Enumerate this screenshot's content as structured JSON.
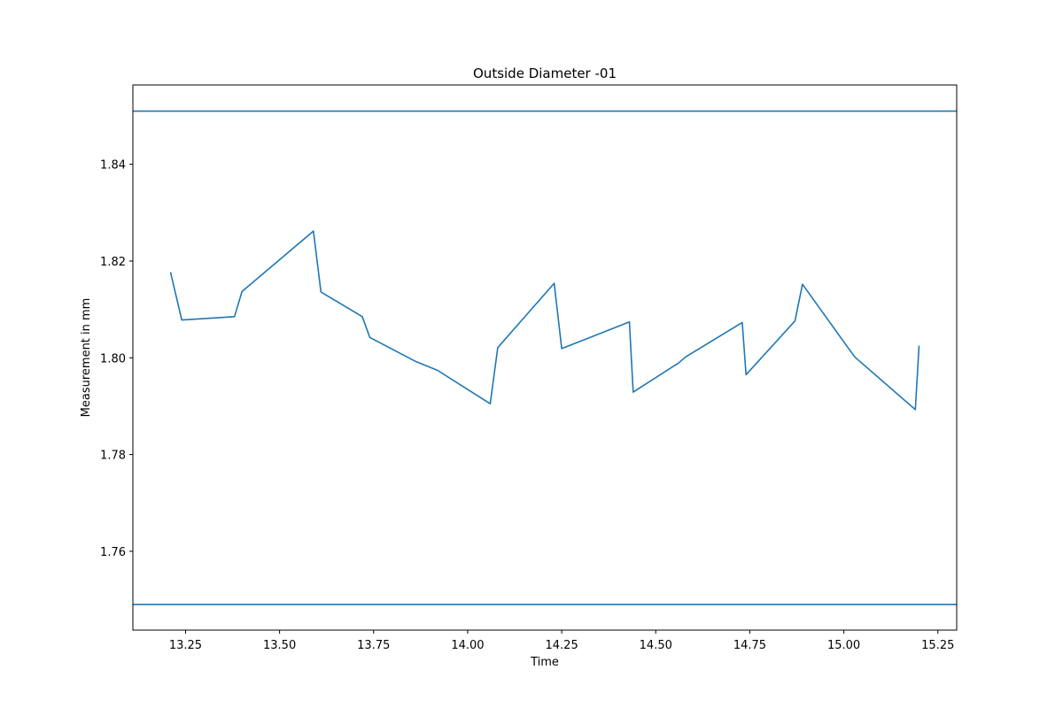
{
  "chart_data": {
    "type": "line",
    "title": "Outside Diameter -01",
    "xlabel": "Time",
    "ylabel": "Measurement in mm",
    "xlim": [
      13.11,
      15.3
    ],
    "ylim": [
      1.7437,
      1.8564
    ],
    "xticks": [
      13.25,
      13.5,
      13.75,
      14.0,
      14.25,
      14.5,
      14.75,
      15.0,
      15.25
    ],
    "xtick_labels": [
      "13.25",
      "13.50",
      "13.75",
      "14.00",
      "14.25",
      "14.50",
      "14.75",
      "15.00",
      "15.25"
    ],
    "yticks": [
      1.76,
      1.78,
      1.8,
      1.82,
      1.84
    ],
    "ytick_labels": [
      "1.76",
      "1.78",
      "1.80",
      "1.82",
      "1.84"
    ],
    "grid": false,
    "line_color": "#1f77b4",
    "limits": [
      {
        "name": "upper",
        "value": 1.851
      },
      {
        "name": "lower",
        "value": 1.749
      }
    ],
    "series": [
      {
        "x": [
          13.21,
          13.24,
          13.38,
          13.4,
          13.59,
          13.61,
          13.72,
          13.74,
          13.86,
          13.92,
          14.06,
          14.08,
          14.23,
          14.25,
          14.43,
          14.44,
          14.56,
          14.58,
          14.73,
          14.74,
          14.87,
          14.89,
          15.01,
          15.03,
          15.19,
          15.2
        ],
        "y": [
          1.8177,
          1.8078,
          1.8085,
          1.8137,
          1.8262,
          1.8136,
          1.8085,
          1.8042,
          1.7993,
          1.7974,
          1.7905,
          1.8021,
          1.8154,
          1.8019,
          1.8074,
          1.7929,
          1.7989,
          1.8002,
          1.8073,
          1.7965,
          1.8076,
          1.8152,
          1.8022,
          1.8001,
          1.7893,
          1.8025
        ]
      }
    ]
  }
}
